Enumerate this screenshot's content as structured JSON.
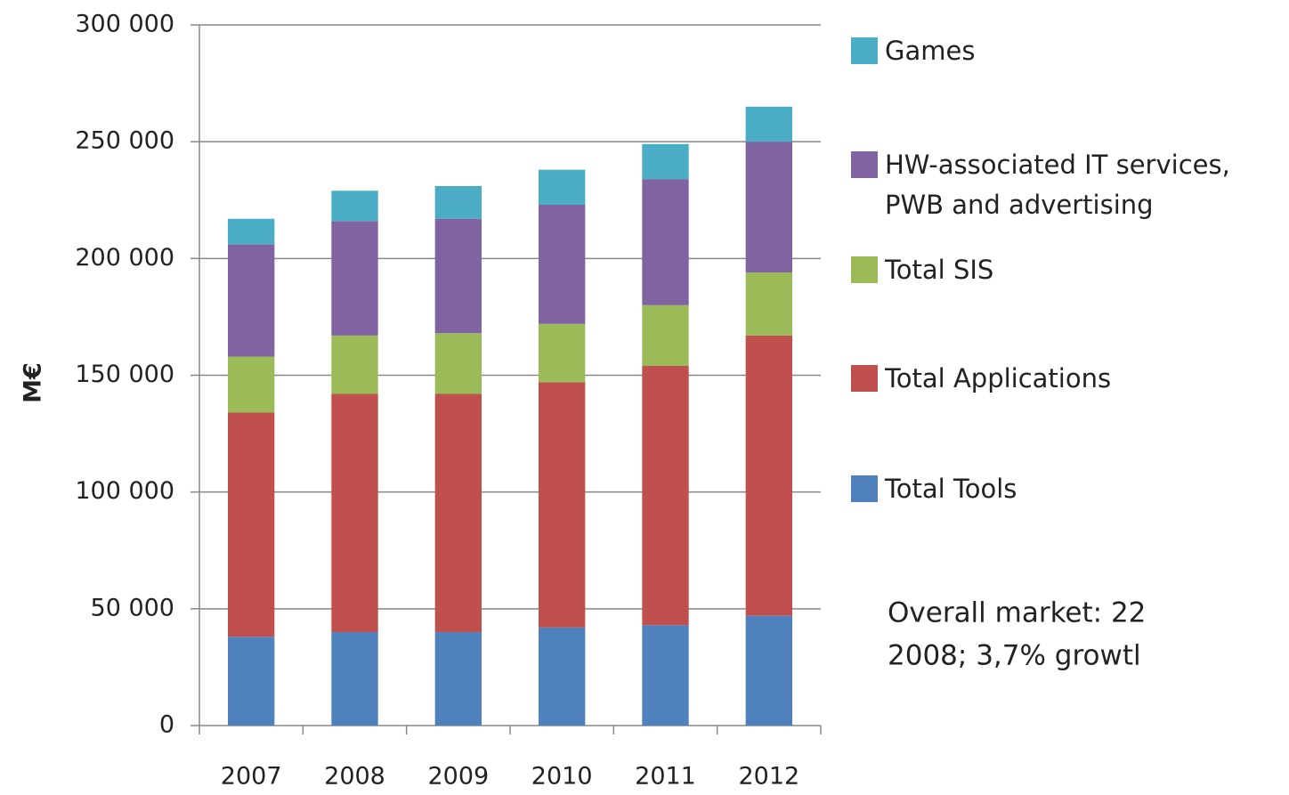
{
  "chart_data": {
    "type": "stacked_bar",
    "y_label": "M€",
    "categories": [
      "2007",
      "2008",
      "2009",
      "2010",
      "2011",
      "2012"
    ],
    "series": [
      {
        "name": "Total Tools",
        "color": "#4f81bd",
        "values": [
          38000,
          40000,
          40000,
          42000,
          43000,
          47000
        ]
      },
      {
        "name": "Total Applications",
        "color": "#c0504d",
        "values": [
          96000,
          102000,
          102000,
          105000,
          111000,
          120000
        ]
      },
      {
        "name": "Total SIS",
        "color": "#9bbb59",
        "values": [
          24000,
          25000,
          26000,
          25000,
          26000,
          27000
        ]
      },
      {
        "name": "HW-associated IT services, PWB and advertising",
        "color": "#8064a2",
        "values": [
          48000,
          49000,
          49000,
          51000,
          54000,
          56000
        ]
      },
      {
        "name": "Games",
        "color": "#4bacc6",
        "values": [
          11000,
          13000,
          14000,
          15000,
          15000,
          15000
        ]
      }
    ],
    "ylim": [
      0,
      300000
    ],
    "yticks": [
      0,
      {
        "value": 50000,
        "label": "50 000"
      },
      {
        "value": 100000,
        "label": "100 000"
      },
      {
        "value": 150000,
        "label": "150 000"
      },
      {
        "value": 200000,
        "label": "200 000"
      },
      {
        "value": 250000,
        "label": "250 000"
      },
      {
        "value": 300000,
        "label": "300 000"
      }
    ],
    "grid": true,
    "annotations": [
      "Overall market: 22",
      "2008; 3,7% growtl"
    ]
  }
}
